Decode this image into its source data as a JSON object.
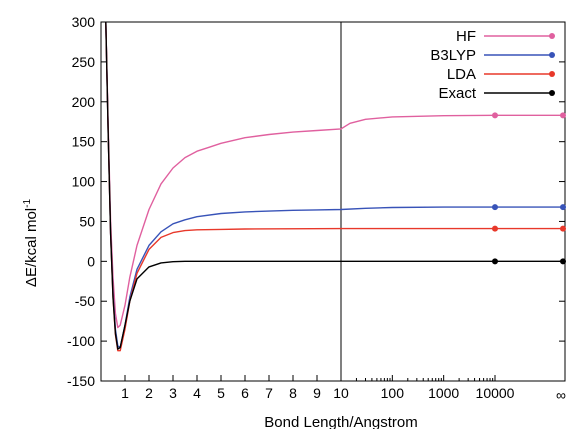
{
  "chart_data": {
    "type": "line",
    "xlabel": "Bond Length/Angstrom",
    "ylabel": "ΔE/kcal mol",
    "ylabel_superscript": "-1",
    "ylim": [
      -150,
      300
    ],
    "y_ticks": [
      300,
      250,
      200,
      150,
      100,
      50,
      0,
      -50,
      -100,
      -150
    ],
    "x_scale": "linear from 0 to 10 Å, then logarithmic from 10 to 10000 Å, then a point at infinity",
    "x_ticks_linear": [
      1,
      2,
      3,
      4,
      5,
      6,
      7,
      8,
      9,
      10
    ],
    "x_ticks_log": [
      "100",
      "1000",
      "10000"
    ],
    "x_tick_infinity": "∞",
    "vertical_divider_at": 10,
    "grid": false,
    "legend_position": "top-right",
    "series": [
      {
        "name": "HF",
        "color": "#e0609f",
        "points": [
          [
            0.2,
            300
          ],
          [
            0.3,
            170
          ],
          [
            0.4,
            50
          ],
          [
            0.5,
            -20
          ],
          [
            0.6,
            -65
          ],
          [
            0.7,
            -83
          ],
          [
            0.8,
            -80
          ],
          [
            1.0,
            -55
          ],
          [
            1.2,
            -20
          ],
          [
            1.5,
            20
          ],
          [
            2.0,
            65
          ],
          [
            2.5,
            97
          ],
          [
            3.0,
            117
          ],
          [
            3.5,
            130
          ],
          [
            4.0,
            138
          ],
          [
            4.5,
            143
          ],
          [
            5.0,
            148
          ],
          [
            6.0,
            155
          ],
          [
            7.0,
            159
          ],
          [
            8.0,
            162
          ],
          [
            9.0,
            164
          ],
          [
            10.0,
            166
          ],
          [
            15,
            173
          ],
          [
            30,
            178
          ],
          [
            100,
            181
          ],
          [
            1000,
            182.5
          ],
          [
            10000,
            183
          ]
        ],
        "infinity_value": 183,
        "markers_at": [
          "10000",
          "infinity"
        ]
      },
      {
        "name": "B3LYP",
        "color": "#3853b8",
        "points": [
          [
            0.2,
            300
          ],
          [
            0.3,
            160
          ],
          [
            0.4,
            35
          ],
          [
            0.5,
            -40
          ],
          [
            0.6,
            -85
          ],
          [
            0.7,
            -106
          ],
          [
            0.8,
            -108
          ],
          [
            1.0,
            -80
          ],
          [
            1.2,
            -45
          ],
          [
            1.5,
            -10
          ],
          [
            2.0,
            20
          ],
          [
            2.5,
            37
          ],
          [
            3.0,
            47
          ],
          [
            3.5,
            52
          ],
          [
            4.0,
            56
          ],
          [
            5.0,
            60
          ],
          [
            6.0,
            62
          ],
          [
            7.0,
            63
          ],
          [
            8.0,
            64
          ],
          [
            9.0,
            64.5
          ],
          [
            10.0,
            65
          ],
          [
            30,
            66.5
          ],
          [
            100,
            67.5
          ],
          [
            1000,
            68
          ],
          [
            10000,
            68
          ]
        ],
        "infinity_value": 68,
        "markers_at": [
          "10000",
          "infinity"
        ]
      },
      {
        "name": "LDA",
        "color": "#e8382a",
        "points": [
          [
            0.2,
            300
          ],
          [
            0.3,
            160
          ],
          [
            0.4,
            35
          ],
          [
            0.5,
            -45
          ],
          [
            0.6,
            -92
          ],
          [
            0.7,
            -112
          ],
          [
            0.8,
            -112
          ],
          [
            1.0,
            -85
          ],
          [
            1.2,
            -50
          ],
          [
            1.5,
            -15
          ],
          [
            2.0,
            15
          ],
          [
            2.5,
            30
          ],
          [
            3.0,
            36
          ],
          [
            3.5,
            38.5
          ],
          [
            4.0,
            39.5
          ],
          [
            5.0,
            40
          ],
          [
            6.0,
            40.5
          ],
          [
            10.0,
            41
          ],
          [
            100,
            41
          ],
          [
            10000,
            41
          ]
        ],
        "infinity_value": 41,
        "markers_at": [
          "10000",
          "infinity"
        ]
      },
      {
        "name": "Exact",
        "color": "#000000",
        "points": [
          [
            0.2,
            300
          ],
          [
            0.3,
            160
          ],
          [
            0.4,
            35
          ],
          [
            0.5,
            -45
          ],
          [
            0.6,
            -90
          ],
          [
            0.7,
            -110
          ],
          [
            0.8,
            -108
          ],
          [
            1.0,
            -80
          ],
          [
            1.2,
            -50
          ],
          [
            1.5,
            -22
          ],
          [
            2.0,
            -7
          ],
          [
            2.5,
            -2
          ],
          [
            3.0,
            -0.5
          ],
          [
            3.5,
            0
          ],
          [
            10.0,
            0
          ],
          [
            10000,
            0
          ]
        ],
        "infinity_value": 0,
        "markers_at": [
          "10000",
          "infinity"
        ]
      }
    ]
  }
}
